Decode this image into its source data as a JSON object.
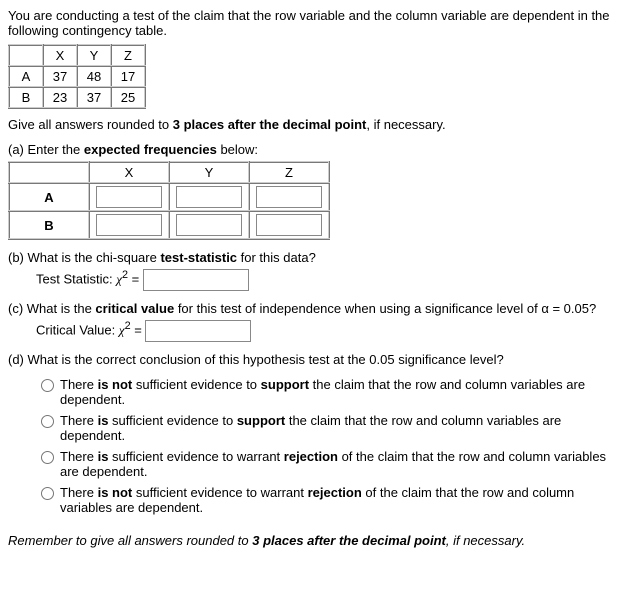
{
  "intro": "You are conducting a test of the claim that the row variable and the column variable are dependent in the following contingency table.",
  "contingency": {
    "cols": [
      "X",
      "Y",
      "Z"
    ],
    "rows": [
      "A",
      "B"
    ],
    "data": [
      [
        37,
        48,
        17
      ],
      [
        23,
        37,
        25
      ]
    ]
  },
  "roundInstr_pre": "Give all answers rounded to ",
  "roundInstr_bold": "3 places after the decimal point",
  "roundInstr_post": ", if necessary.",
  "a": {
    "label_pre": "(a) Enter the ",
    "label_bold": "expected frequencies",
    "label_post": " below:",
    "cols": [
      "X",
      "Y",
      "Z"
    ],
    "rows": [
      "A",
      "B"
    ]
  },
  "b": {
    "label_pre": "(b) What is the chi-square ",
    "label_bold": "test-statistic",
    "label_post": " for this data?",
    "stat_label": "Test Statistic: "
  },
  "c": {
    "label_pre": "(c) What is the ",
    "label_bold": "critical value",
    "label_post": " for this test of independence when using a significance level of α = 0.05?",
    "stat_label": "Critical Value: "
  },
  "d": {
    "label": "(d) What is the correct conclusion of this hypothesis test at the 0.05 significance level?",
    "options": [
      {
        "pre": "There ",
        "b1": "is not",
        "mid": " sufficient evidence to ",
        "b2": "support",
        "post": " the claim that the row and column variables are dependent."
      },
      {
        "pre": "There ",
        "b1": "is",
        "mid": " sufficient evidence to ",
        "b2": "support",
        "post": " the claim that the row and column variables are dependent."
      },
      {
        "pre": "There ",
        "b1": "is",
        "mid": " sufficient evidence to warrant ",
        "b2": "rejection",
        "post": " of the claim that the row and column variables are dependent."
      },
      {
        "pre": "There ",
        "b1": "is not",
        "mid": " sufficient evidence to warrant ",
        "b2": "rejection",
        "post": " of the claim that the row and column variables are dependent."
      }
    ]
  },
  "footer_pre": "Remember to give all answers rounded to ",
  "footer_bold": "3 places after the decimal point",
  "footer_post": ", if necessary.",
  "chi_html": "χ",
  "sup2": "2",
  "eq": " = "
}
